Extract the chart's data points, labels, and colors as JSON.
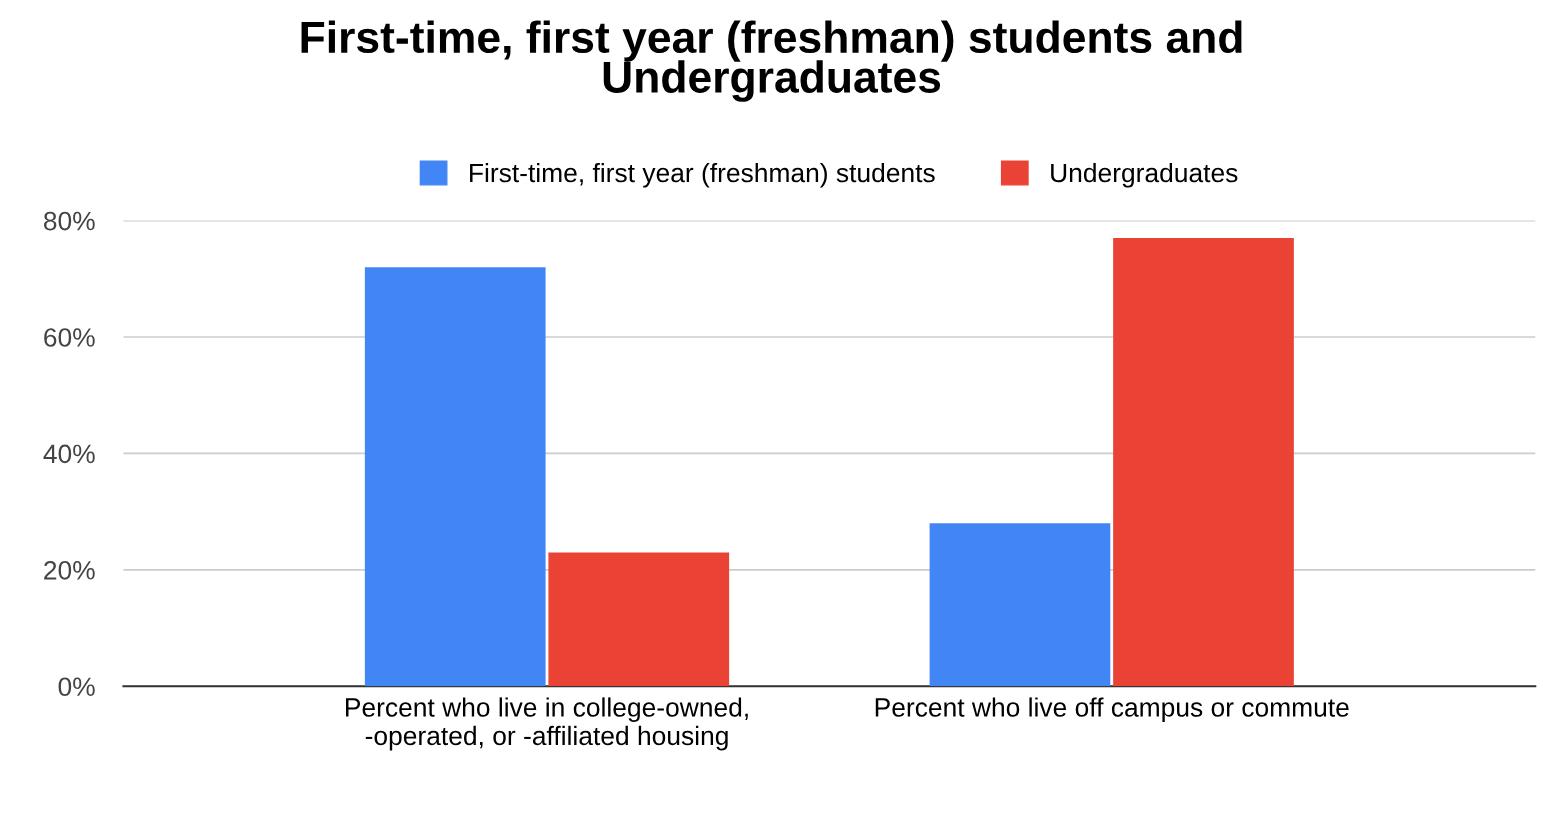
{
  "chart_data": {
    "type": "bar",
    "title": "First-time, first year (freshman) students and\nUndergraduates",
    "categories": [
      "Percent who live in college-owned,\n-operated, or -affiliated housing",
      "Percent who live off campus or commute"
    ],
    "series": [
      {
        "name": "First-time, first year (freshman) students",
        "color": "#4285f4",
        "values": [
          72,
          28
        ]
      },
      {
        "name": "Undergraduates",
        "color": "#ea4335",
        "values": [
          23,
          77
        ]
      }
    ],
    "ylim": [
      0,
      80
    ],
    "yticks": [
      {
        "value": 0,
        "label": "0%"
      },
      {
        "value": 20,
        "label": "20%"
      },
      {
        "value": 40,
        "label": "40%"
      },
      {
        "value": 60,
        "label": "60%"
      },
      {
        "value": 80,
        "label": "80%"
      }
    ],
    "grid": "y",
    "legend": "top"
  }
}
